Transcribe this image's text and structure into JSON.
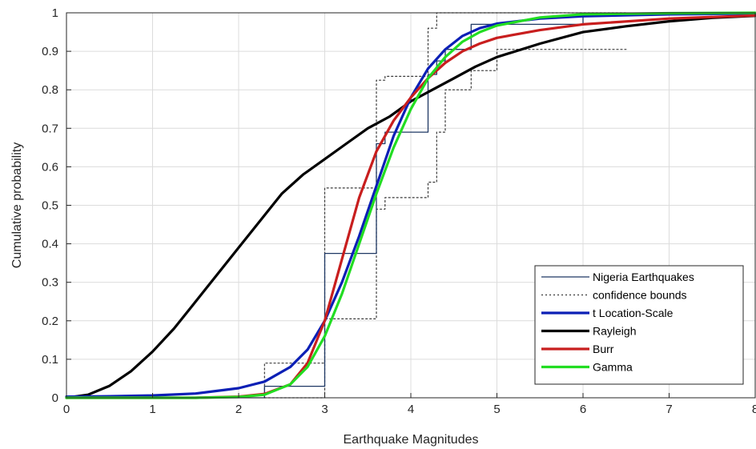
{
  "chart_data": {
    "type": "line",
    "title": "",
    "xlabel": "Earthquake Magnitudes",
    "ylabel": "Cumulative probability",
    "xlim": [
      0,
      8
    ],
    "ylim": [
      0,
      1
    ],
    "x_ticks": [
      "0",
      "1",
      "2",
      "3",
      "4",
      "5",
      "6",
      "7",
      "8"
    ],
    "y_ticks": [
      "0",
      "0.1",
      "0.2",
      "0.3",
      "0.4",
      "0.5",
      "0.6",
      "0.7",
      "0.8",
      "0.9",
      "1"
    ],
    "grid": true,
    "legend_position": "bottom-right",
    "series": [
      {
        "name": "Nigeria Earthquakes",
        "kind": "step",
        "color": "#1f3864",
        "x": [
          0,
          2.3,
          2.3,
          3.0,
          3.0,
          3.6,
          3.6,
          3.7,
          3.7,
          4.2,
          4.2,
          4.3,
          4.3,
          4.4,
          4.4,
          4.7,
          4.7,
          6.0,
          6.0,
          6.5
        ],
        "y": [
          0,
          0,
          0.03,
          0.03,
          0.375,
          0.375,
          0.66,
          0.66,
          0.69,
          0.69,
          0.84,
          0.84,
          0.875,
          0.875,
          0.905,
          0.905,
          0.97,
          0.97,
          0.995,
          0.995
        ]
      },
      {
        "name": "confidence bounds",
        "kind": "step-dotted",
        "color": "#3a3a3a",
        "x": [
          2.3,
          2.3,
          3.0,
          3.0,
          3.6,
          3.6,
          3.7,
          3.7,
          4.2,
          4.2,
          4.3,
          4.3,
          4.4,
          4.4,
          4.7,
          4.7,
          6.5
        ],
        "y": [
          0,
          0.09,
          0.09,
          0.545,
          0.545,
          0.825,
          0.825,
          0.835,
          0.835,
          0.96,
          0.96,
          1.0,
          1.0,
          1.0,
          1.0,
          1.0,
          1.0
        ]
      },
      {
        "name": "",
        "kind": "step-dotted",
        "color": "#3a3a3a",
        "x": [
          2.3,
          3.0,
          3.0,
          3.6,
          3.6,
          3.7,
          3.7,
          4.2,
          4.2,
          4.3,
          4.3,
          4.4,
          4.4,
          4.7,
          4.7,
          5.0,
          5.0,
          6.5
        ],
        "y": [
          0,
          0,
          0.205,
          0.205,
          0.49,
          0.49,
          0.52,
          0.52,
          0.56,
          0.56,
          0.69,
          0.69,
          0.8,
          0.8,
          0.85,
          0.85,
          0.905,
          0.905
        ]
      },
      {
        "name": "t Location-Scale",
        "kind": "line",
        "color": "#0b1fb5",
        "x": [
          0,
          0.5,
          1.0,
          1.5,
          2.0,
          2.3,
          2.6,
          2.8,
          3.0,
          3.2,
          3.4,
          3.6,
          3.8,
          4.0,
          4.2,
          4.4,
          4.6,
          4.8,
          5.0,
          5.5,
          6.0,
          7.0,
          8.0
        ],
        "y": [
          0.003,
          0.004,
          0.006,
          0.011,
          0.025,
          0.042,
          0.08,
          0.125,
          0.2,
          0.3,
          0.42,
          0.55,
          0.68,
          0.78,
          0.855,
          0.905,
          0.94,
          0.96,
          0.972,
          0.985,
          0.991,
          0.996,
          0.998
        ]
      },
      {
        "name": "Rayleigh",
        "kind": "line",
        "color": "#000000",
        "x": [
          0,
          0.25,
          0.5,
          0.75,
          1.0,
          1.25,
          1.5,
          1.75,
          2.0,
          2.25,
          2.5,
          2.75,
          3.0,
          3.25,
          3.5,
          3.75,
          4.0,
          4.25,
          4.5,
          4.75,
          5.0,
          5.5,
          6.0,
          6.5,
          7.0,
          7.5,
          8.0
        ],
        "y": [
          0,
          0.008,
          0.031,
          0.069,
          0.12,
          0.18,
          0.25,
          0.32,
          0.39,
          0.46,
          0.53,
          0.58,
          0.62,
          0.66,
          0.7,
          0.73,
          0.77,
          0.8,
          0.83,
          0.86,
          0.885,
          0.92,
          0.95,
          0.965,
          0.978,
          0.987,
          0.992
        ]
      },
      {
        "name": "Burr",
        "kind": "line",
        "color": "#c81e1e",
        "x": [
          0,
          1.5,
          2.0,
          2.3,
          2.6,
          2.8,
          3.0,
          3.2,
          3.4,
          3.6,
          3.8,
          4.0,
          4.2,
          4.4,
          4.6,
          4.8,
          5.0,
          5.5,
          6.0,
          7.0,
          8.0
        ],
        "y": [
          0,
          0.0,
          0.003,
          0.01,
          0.035,
          0.09,
          0.2,
          0.36,
          0.52,
          0.64,
          0.72,
          0.78,
          0.83,
          0.87,
          0.9,
          0.92,
          0.935,
          0.955,
          0.97,
          0.985,
          0.993
        ]
      },
      {
        "name": "Gamma",
        "kind": "line",
        "color": "#22dd22",
        "x": [
          0,
          1.5,
          2.0,
          2.3,
          2.6,
          2.8,
          3.0,
          3.2,
          3.4,
          3.6,
          3.8,
          4.0,
          4.2,
          4.4,
          4.6,
          4.8,
          5.0,
          5.5,
          6.0,
          7.0,
          8.0
        ],
        "y": [
          0,
          0.0,
          0.002,
          0.008,
          0.035,
          0.08,
          0.16,
          0.27,
          0.4,
          0.53,
          0.65,
          0.75,
          0.83,
          0.885,
          0.925,
          0.95,
          0.967,
          0.988,
          0.996,
          0.999,
          1.0
        ]
      }
    ]
  }
}
